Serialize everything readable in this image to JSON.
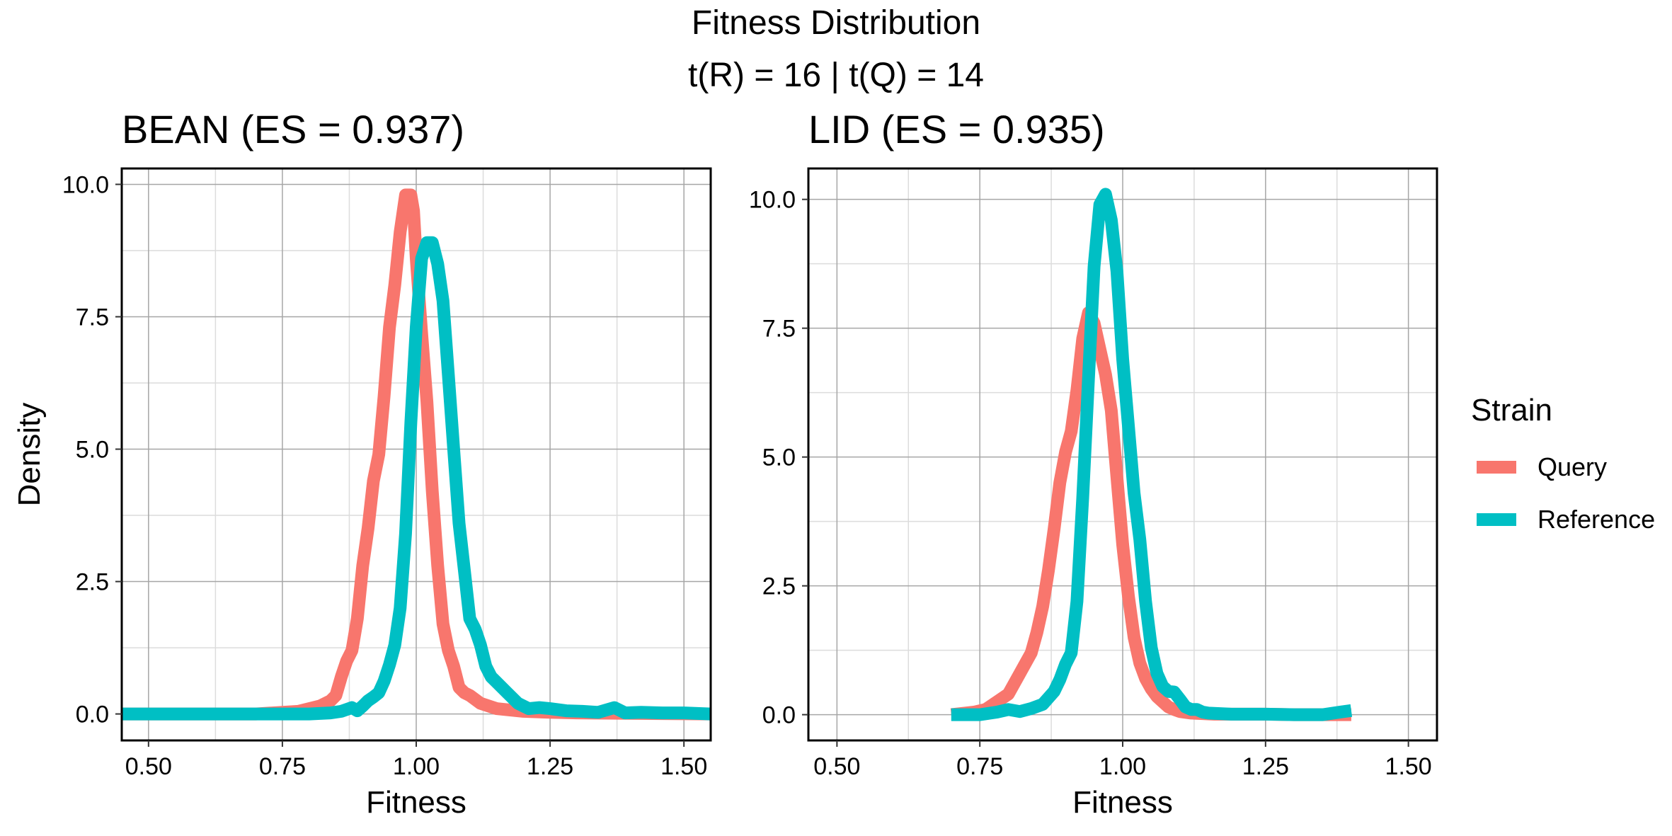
{
  "title": "Fitness Distribution",
  "subtitle": "t(R) = 16 | t(Q) = 14",
  "legend": {
    "title": "Strain",
    "items": [
      {
        "label": "Query",
        "color": "#F8766D"
      },
      {
        "label": "Reference",
        "color": "#00BFC4"
      }
    ],
    "placement": "right"
  },
  "chart_data": [
    {
      "type": "line",
      "title": "BEAN (ES = 0.937)",
      "xlabel": "Fitness",
      "ylabel": "Density",
      "xlim": [
        0.45,
        1.55
      ],
      "ylim": [
        -0.5,
        10.3
      ],
      "xticks": [
        "0.50",
        "0.75",
        "1.00",
        "1.25",
        "1.50"
      ],
      "yticks": [
        "0.0",
        "2.5",
        "5.0",
        "7.5",
        "10.0"
      ],
      "grid": true,
      "series": [
        {
          "name": "Query",
          "color": "#F8766D",
          "x": [
            0.45,
            0.6,
            0.7,
            0.78,
            0.82,
            0.84,
            0.85,
            0.86,
            0.87,
            0.88,
            0.89,
            0.9,
            0.91,
            0.92,
            0.93,
            0.94,
            0.95,
            0.96,
            0.97,
            0.98,
            0.99,
            0.995,
            1.0,
            1.01,
            1.02,
            1.03,
            1.04,
            1.05,
            1.06,
            1.07,
            1.08,
            1.09,
            1.1,
            1.12,
            1.15,
            1.2,
            1.25,
            1.3,
            1.4,
            1.55
          ],
          "y": [
            0,
            0,
            0,
            0.05,
            0.15,
            0.25,
            0.35,
            0.7,
            1.0,
            1.2,
            1.8,
            2.8,
            3.5,
            4.4,
            4.9,
            6.0,
            7.3,
            8.1,
            9.1,
            9.8,
            9.8,
            9.5,
            8.6,
            7.2,
            5.9,
            4.2,
            2.8,
            1.7,
            1.2,
            0.9,
            0.5,
            0.4,
            0.35,
            0.2,
            0.1,
            0.05,
            0.03,
            0.02,
            0.01,
            0
          ]
        },
        {
          "name": "Reference",
          "color": "#00BFC4",
          "x": [
            0.45,
            0.7,
            0.8,
            0.84,
            0.86,
            0.88,
            0.89,
            0.9,
            0.91,
            0.92,
            0.93,
            0.94,
            0.95,
            0.96,
            0.97,
            0.98,
            0.99,
            1.0,
            1.01,
            1.02,
            1.03,
            1.04,
            1.05,
            1.06,
            1.07,
            1.08,
            1.09,
            1.1,
            1.11,
            1.12,
            1.13,
            1.14,
            1.15,
            1.17,
            1.19,
            1.21,
            1.23,
            1.25,
            1.28,
            1.31,
            1.34,
            1.37,
            1.39,
            1.42,
            1.46,
            1.5,
            1.55
          ],
          "y": [
            0,
            0,
            0,
            0.02,
            0.05,
            0.12,
            0.06,
            0.15,
            0.25,
            0.32,
            0.4,
            0.62,
            0.93,
            1.3,
            2.0,
            3.4,
            5.5,
            7.3,
            8.6,
            8.9,
            8.9,
            8.5,
            7.8,
            6.4,
            5.0,
            3.6,
            2.7,
            1.8,
            1.6,
            1.3,
            0.9,
            0.7,
            0.6,
            0.4,
            0.2,
            0.1,
            0.12,
            0.1,
            0.06,
            0.05,
            0.03,
            0.12,
            0.02,
            0.03,
            0.02,
            0.02,
            0
          ]
        }
      ]
    },
    {
      "type": "line",
      "title": "LID (ES = 0.935)",
      "xlabel": "Fitness",
      "ylabel": "",
      "xlim": [
        0.45,
        1.55
      ],
      "ylim": [
        -0.5,
        10.6
      ],
      "xticks": [
        "0.50",
        "0.75",
        "1.00",
        "1.25",
        "1.50"
      ],
      "yticks": [
        "0.0",
        "2.5",
        "5.0",
        "7.5",
        "10.0"
      ],
      "grid": true,
      "series": [
        {
          "name": "Query",
          "color": "#F8766D",
          "x": [
            0.7,
            0.74,
            0.76,
            0.78,
            0.8,
            0.82,
            0.84,
            0.85,
            0.86,
            0.87,
            0.88,
            0.89,
            0.9,
            0.91,
            0.92,
            0.93,
            0.94,
            0.95,
            0.96,
            0.97,
            0.98,
            0.99,
            1.0,
            1.01,
            1.02,
            1.03,
            1.04,
            1.05,
            1.06,
            1.07,
            1.08,
            1.09,
            1.1,
            1.12,
            1.14,
            1.16,
            1.2,
            1.25,
            1.3,
            1.4
          ],
          "y": [
            0,
            0.05,
            0.1,
            0.25,
            0.4,
            0.8,
            1.2,
            1.6,
            2.1,
            2.8,
            3.6,
            4.5,
            5.1,
            5.5,
            6.3,
            7.3,
            7.8,
            7.6,
            7.1,
            6.6,
            5.9,
            4.6,
            3.3,
            2.3,
            1.5,
            1.0,
            0.7,
            0.5,
            0.35,
            0.25,
            0.15,
            0.1,
            0.06,
            0.03,
            0.02,
            0.01,
            0.01,
            0.01,
            0,
            0
          ]
        },
        {
          "name": "Reference",
          "color": "#00BFC4",
          "x": [
            0.7,
            0.75,
            0.78,
            0.8,
            0.82,
            0.84,
            0.86,
            0.88,
            0.89,
            0.9,
            0.91,
            0.92,
            0.93,
            0.94,
            0.95,
            0.96,
            0.97,
            0.98,
            0.99,
            1.0,
            1.01,
            1.02,
            1.03,
            1.04,
            1.05,
            1.06,
            1.07,
            1.08,
            1.09,
            1.1,
            1.11,
            1.12,
            1.13,
            1.14,
            1.15,
            1.17,
            1.19,
            1.21,
            1.25,
            1.3,
            1.35,
            1.38,
            1.4
          ],
          "y": [
            0,
            0,
            0.05,
            0.1,
            0.06,
            0.12,
            0.2,
            0.45,
            0.68,
            0.98,
            1.2,
            2.2,
            4.2,
            6.5,
            8.7,
            9.9,
            10.1,
            9.6,
            8.6,
            6.9,
            5.6,
            4.3,
            3.4,
            2.2,
            1.3,
            0.8,
            0.55,
            0.45,
            0.44,
            0.3,
            0.15,
            0.1,
            0.1,
            0.05,
            0.03,
            0.02,
            0.01,
            0.01,
            0.01,
            0,
            0,
            0.05,
            0.08
          ]
        }
      ]
    }
  ]
}
